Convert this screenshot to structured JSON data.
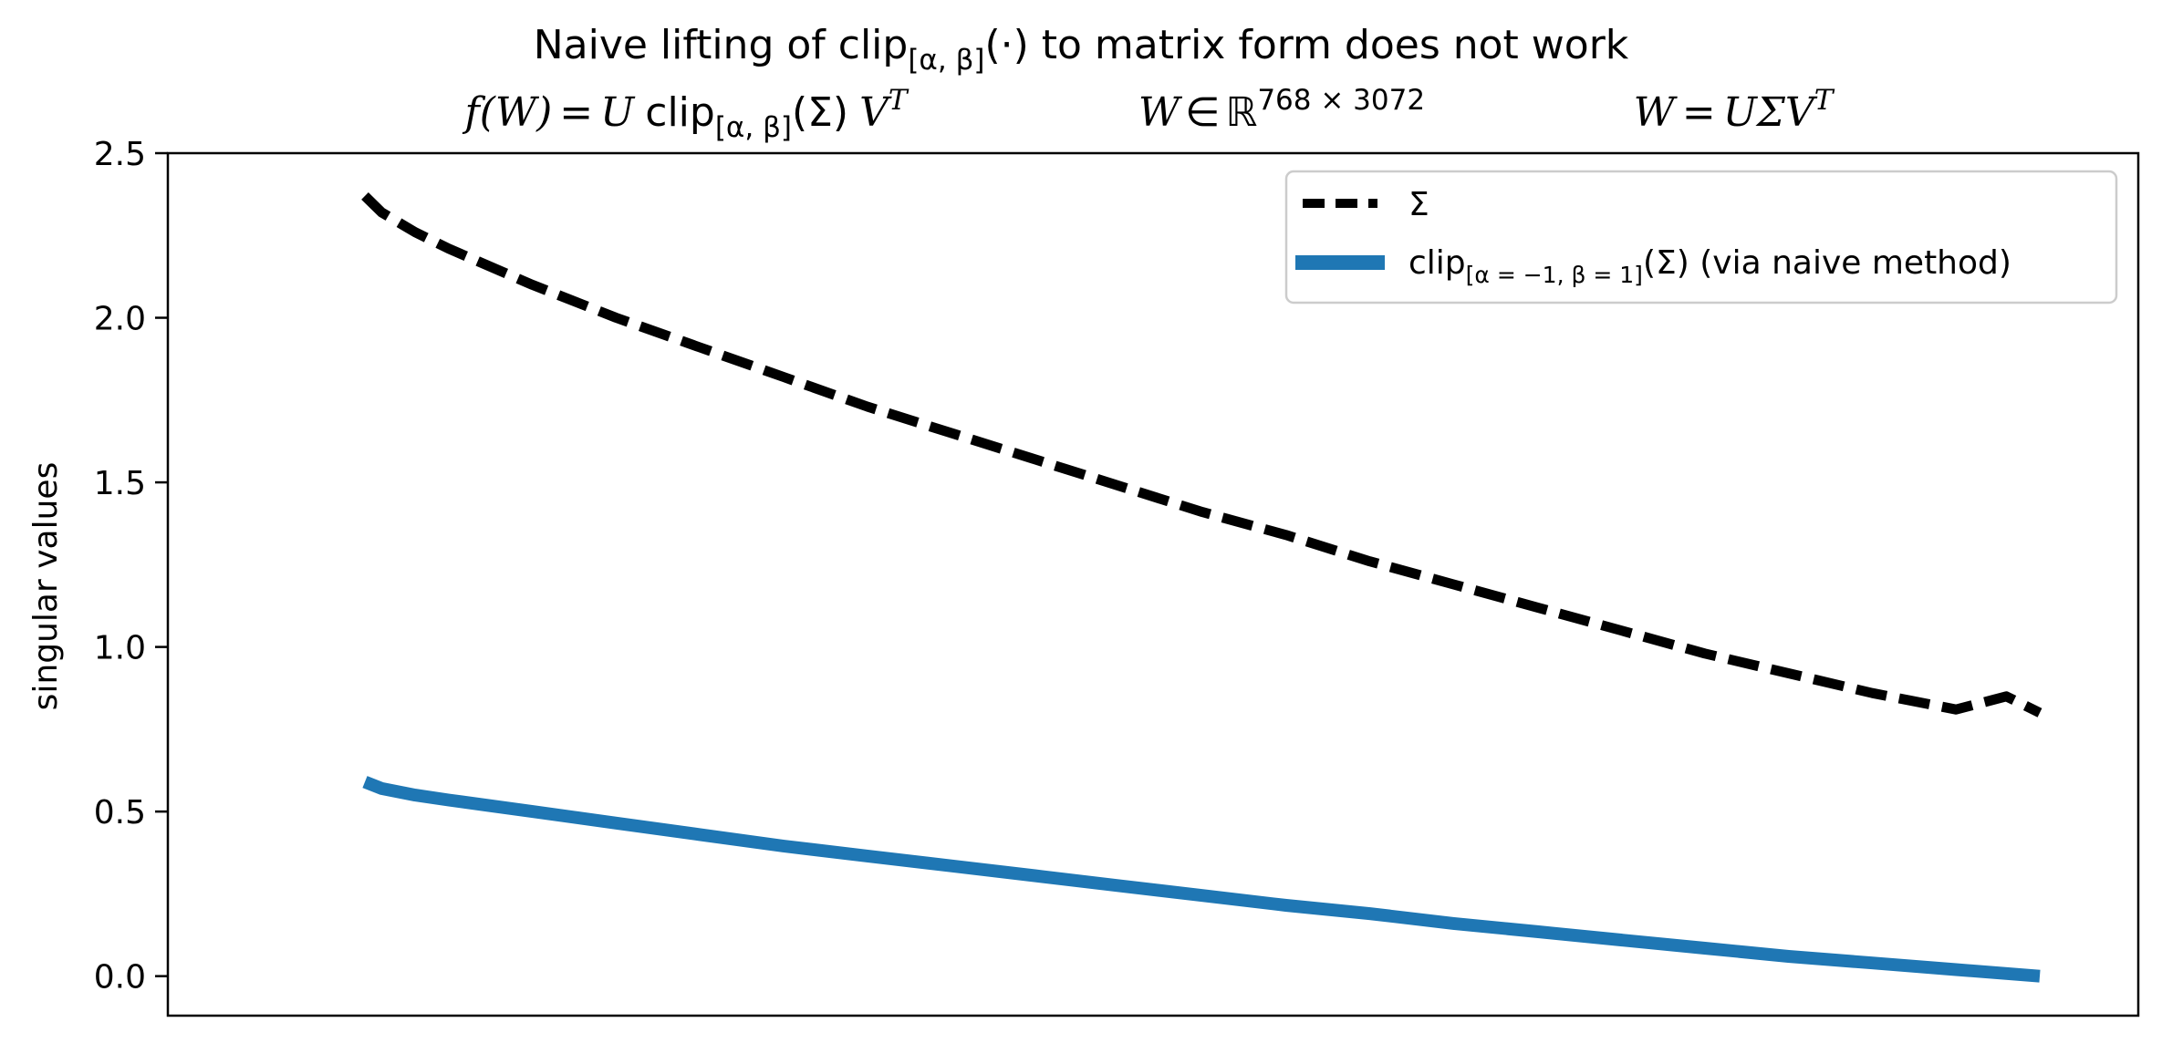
{
  "chart_data": {
    "type": "line",
    "title": {
      "pre": "Naive lifting of clip",
      "sub": "[α, β]",
      "post": "(·) to matrix form does not work"
    },
    "subtitle": {
      "formula1": {
        "lhs": "f(W)",
        "eq": "=",
        "u": "U",
        "clip": "clip",
        "sub": "[α, β]",
        "arg": "(Σ)",
        "v": "V",
        "sup": "T"
      },
      "formula2": {
        "w": "W",
        "in": "∈",
        "r": "ℝ",
        "sup": "768 × 3072"
      },
      "formula3": {
        "lhs": "W",
        "eq": "=",
        "rhs": "UΣV",
        "sup": "T"
      }
    },
    "ylabel": "singular values",
    "xlabel": "",
    "ylim": [
      -0.12,
      2.5
    ],
    "yticks": [
      "0.0",
      "0.5",
      "1.0",
      "1.5",
      "2.0",
      "2.5"
    ],
    "x_ticks_visible": false,
    "grid": false,
    "legend": {
      "placement": "top-right",
      "entries": [
        {
          "label": "Σ"
        },
        {
          "label_pre": "clip",
          "label_sub": "[α = −1, β = 1]",
          "label_post": "(Σ) (via naive method)"
        }
      ]
    },
    "series": [
      {
        "name": "Σ",
        "color": "#000000",
        "style": "dashed",
        "x": [
          0,
          0.01,
          0.03,
          0.05,
          0.1,
          0.15,
          0.2,
          0.25,
          0.3,
          0.35,
          0.4,
          0.45,
          0.5,
          0.55,
          0.6,
          0.65,
          0.7,
          0.75,
          0.8,
          0.85,
          0.9,
          0.95,
          0.98,
          1.0
        ],
        "values": [
          2.37,
          2.32,
          2.26,
          2.21,
          2.1,
          2.0,
          1.91,
          1.82,
          1.73,
          1.65,
          1.57,
          1.49,
          1.41,
          1.34,
          1.26,
          1.19,
          1.12,
          1.05,
          0.98,
          0.92,
          0.86,
          0.81,
          0.85,
          0.8
        ]
      },
      {
        "name": "clip[α = −1, β = 1](Σ) (via naive method)",
        "color": "#1f77b4",
        "style": "solid",
        "x": [
          0,
          0.01,
          0.03,
          0.05,
          0.1,
          0.15,
          0.2,
          0.25,
          0.3,
          0.35,
          0.4,
          0.45,
          0.5,
          0.55,
          0.6,
          0.65,
          0.7,
          0.75,
          0.8,
          0.85,
          0.9,
          0.95,
          1.0
        ],
        "values": [
          0.59,
          0.57,
          0.55,
          0.535,
          0.5,
          0.465,
          0.43,
          0.395,
          0.365,
          0.335,
          0.305,
          0.275,
          0.245,
          0.215,
          0.19,
          0.16,
          0.135,
          0.11,
          0.085,
          0.06,
          0.04,
          0.02,
          0.0
        ]
      }
    ]
  }
}
